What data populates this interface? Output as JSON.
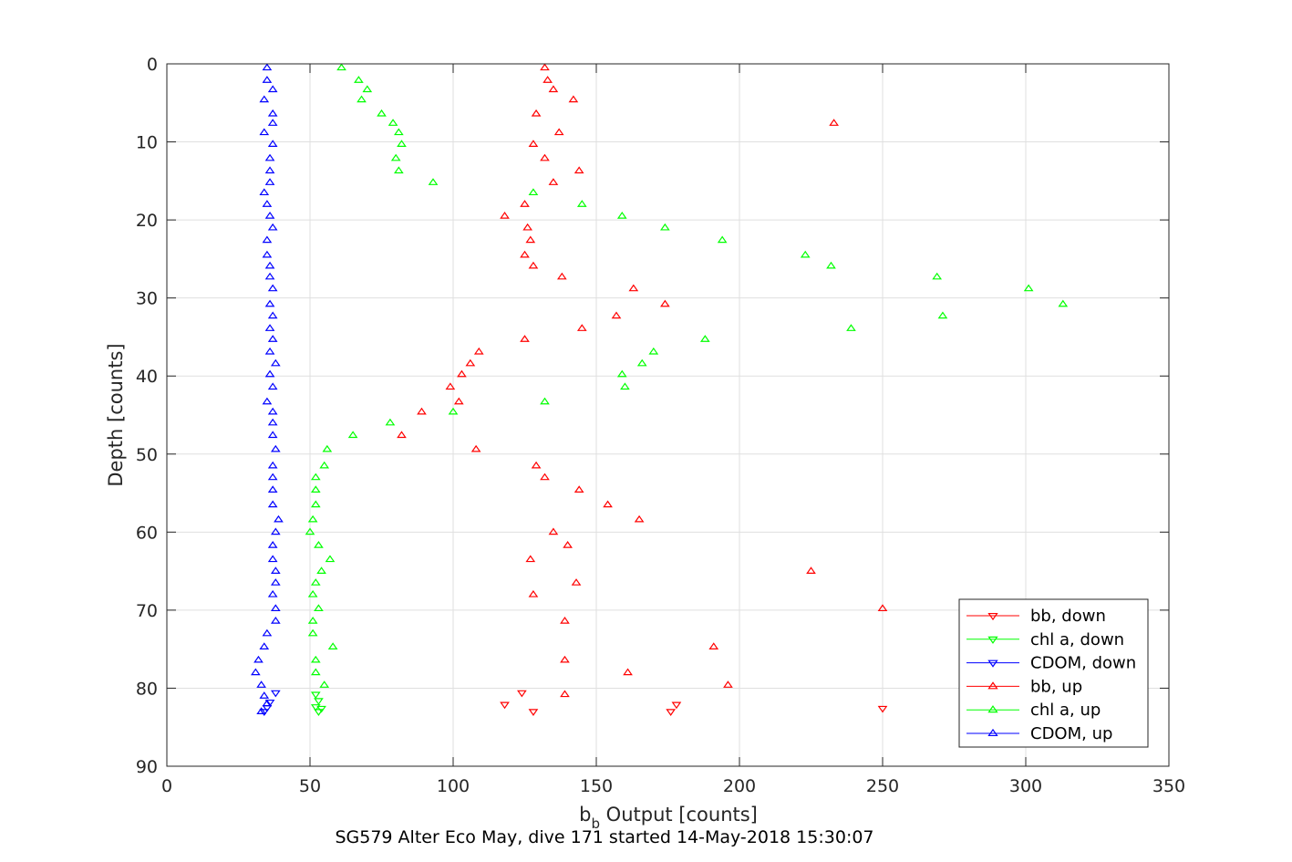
{
  "chart_data": {
    "type": "scatter",
    "xlabel": "b",
    "xlabel_sub": "b",
    "xlabel_suffix": " Output [counts]",
    "ylabel": "Depth [counts]",
    "caption": "SG579 Alter Eco May, dive 171 started 14-May-2018 15:30:07",
    "xlim": [
      0,
      350
    ],
    "ylim": [
      0,
      90
    ],
    "y_reversed": true,
    "grid": true,
    "legend_position": "bottom-right",
    "xticks": [
      "0",
      "50",
      "100",
      "150",
      "200",
      "250",
      "300",
      "350"
    ],
    "yticks": [
      "0",
      "10",
      "20",
      "30",
      "40",
      "50",
      "60",
      "70",
      "80",
      "90"
    ],
    "series": [
      {
        "name": "bb, down",
        "color": "#ff0000",
        "marker": "triangle-down",
        "points": [
          [
            124,
            80.6
          ],
          [
            118,
            82.1
          ],
          [
            128,
            83.0
          ],
          [
            176,
            83.0
          ],
          [
            178,
            82.1
          ],
          [
            250,
            82.6
          ]
        ]
      },
      {
        "name": "chl a, down",
        "color": "#00ff00",
        "marker": "triangle-down",
        "points": [
          [
            52,
            80.8
          ],
          [
            53,
            81.6
          ],
          [
            52,
            82.4
          ],
          [
            54,
            82.6
          ],
          [
            53,
            83.0
          ]
        ]
      },
      {
        "name": "CDOM, down",
        "color": "#0000ff",
        "marker": "triangle-down",
        "points": [
          [
            38,
            80.6
          ],
          [
            36,
            81.8
          ],
          [
            35,
            82.5
          ],
          [
            34,
            83.0
          ]
        ]
      },
      {
        "name": "bb, up",
        "color": "#ff0000",
        "marker": "triangle-up",
        "points": [
          [
            132,
            0.5
          ],
          [
            133,
            2.1
          ],
          [
            135,
            3.3
          ],
          [
            142,
            4.6
          ],
          [
            129,
            6.4
          ],
          [
            233,
            7.6
          ],
          [
            137,
            8.8
          ],
          [
            128,
            10.3
          ],
          [
            132,
            12.1
          ],
          [
            144,
            13.7
          ],
          [
            135,
            15.2
          ],
          [
            125,
            18.0
          ],
          [
            118,
            19.5
          ],
          [
            126,
            21.0
          ],
          [
            127,
            22.6
          ],
          [
            125,
            24.5
          ],
          [
            128,
            25.9
          ],
          [
            138,
            27.3
          ],
          [
            163,
            28.8
          ],
          [
            174,
            30.8
          ],
          [
            157,
            32.3
          ],
          [
            145,
            33.9
          ],
          [
            125,
            35.3
          ],
          [
            109,
            36.9
          ],
          [
            106,
            38.4
          ],
          [
            103,
            39.8
          ],
          [
            99,
            41.4
          ],
          [
            102,
            43.3
          ],
          [
            89,
            44.6
          ],
          [
            82,
            47.6
          ],
          [
            108,
            49.4
          ],
          [
            129,
            51.5
          ],
          [
            132,
            53.0
          ],
          [
            144,
            54.6
          ],
          [
            154,
            56.5
          ],
          [
            165,
            58.4
          ],
          [
            135,
            60.0
          ],
          [
            140,
            61.7
          ],
          [
            127,
            63.5
          ],
          [
            225,
            65.0
          ],
          [
            143,
            66.5
          ],
          [
            128,
            68.0
          ],
          [
            250,
            69.8
          ],
          [
            139,
            71.4
          ],
          [
            191,
            74.7
          ],
          [
            139,
            76.4
          ],
          [
            161,
            78.0
          ],
          [
            196,
            79.6
          ],
          [
            139,
            80.8
          ]
        ]
      },
      {
        "name": "chl a, up",
        "color": "#00ff00",
        "marker": "triangle-up",
        "points": [
          [
            61,
            0.5
          ],
          [
            67,
            2.1
          ],
          [
            70,
            3.3
          ],
          [
            68,
            4.6
          ],
          [
            75,
            6.4
          ],
          [
            79,
            7.6
          ],
          [
            81,
            8.8
          ],
          [
            82,
            10.3
          ],
          [
            80,
            12.1
          ],
          [
            81,
            13.7
          ],
          [
            93,
            15.2
          ],
          [
            128,
            16.5
          ],
          [
            145,
            18.0
          ],
          [
            159,
            19.5
          ],
          [
            174,
            21.0
          ],
          [
            194,
            22.6
          ],
          [
            223,
            24.5
          ],
          [
            232,
            25.9
          ],
          [
            269,
            27.3
          ],
          [
            301,
            28.8
          ],
          [
            313,
            30.8
          ],
          [
            271,
            32.3
          ],
          [
            239,
            33.9
          ],
          [
            188,
            35.3
          ],
          [
            170,
            36.9
          ],
          [
            166,
            38.4
          ],
          [
            159,
            39.8
          ],
          [
            160,
            41.4
          ],
          [
            132,
            43.3
          ],
          [
            100,
            44.6
          ],
          [
            78,
            46.0
          ],
          [
            65,
            47.6
          ],
          [
            56,
            49.4
          ],
          [
            55,
            51.5
          ],
          [
            52,
            53.0
          ],
          [
            52,
            54.6
          ],
          [
            52,
            56.5
          ],
          [
            51,
            58.4
          ],
          [
            50,
            60.0
          ],
          [
            53,
            61.7
          ],
          [
            57,
            63.5
          ],
          [
            54,
            65.0
          ],
          [
            52,
            66.5
          ],
          [
            51,
            68.0
          ],
          [
            53,
            69.8
          ],
          [
            51,
            71.4
          ],
          [
            51,
            73.0
          ],
          [
            58,
            74.7
          ],
          [
            52,
            76.4
          ],
          [
            52,
            78.0
          ],
          [
            55,
            79.6
          ]
        ]
      },
      {
        "name": "CDOM, up",
        "color": "#0000ff",
        "marker": "triangle-up",
        "points": [
          [
            35,
            0.5
          ],
          [
            35,
            2.1
          ],
          [
            37,
            3.3
          ],
          [
            34,
            4.6
          ],
          [
            37,
            6.4
          ],
          [
            37,
            7.6
          ],
          [
            34,
            8.8
          ],
          [
            37,
            10.3
          ],
          [
            36,
            12.1
          ],
          [
            36,
            13.7
          ],
          [
            36,
            15.2
          ],
          [
            34,
            16.5
          ],
          [
            35,
            18.0
          ],
          [
            36,
            19.5
          ],
          [
            37,
            21.0
          ],
          [
            35,
            22.6
          ],
          [
            35,
            24.5
          ],
          [
            36,
            25.9
          ],
          [
            36,
            27.3
          ],
          [
            37,
            28.8
          ],
          [
            36,
            30.8
          ],
          [
            37,
            32.3
          ],
          [
            36,
            33.9
          ],
          [
            37,
            35.3
          ],
          [
            36,
            36.9
          ],
          [
            38,
            38.4
          ],
          [
            36,
            39.8
          ],
          [
            37,
            41.4
          ],
          [
            35,
            43.3
          ],
          [
            37,
            44.6
          ],
          [
            37,
            46.0
          ],
          [
            37,
            47.6
          ],
          [
            38,
            49.4
          ],
          [
            37,
            51.5
          ],
          [
            37,
            53.0
          ],
          [
            37,
            54.6
          ],
          [
            37,
            56.5
          ],
          [
            39,
            58.4
          ],
          [
            38,
            60.0
          ],
          [
            37,
            61.7
          ],
          [
            37,
            63.5
          ],
          [
            38,
            65.0
          ],
          [
            38,
            66.5
          ],
          [
            37,
            68.0
          ],
          [
            38,
            69.8
          ],
          [
            38,
            71.4
          ],
          [
            35,
            73.0
          ],
          [
            34,
            74.7
          ],
          [
            32,
            76.4
          ],
          [
            31,
            78.0
          ],
          [
            33,
            79.6
          ],
          [
            34,
            81.0
          ],
          [
            35,
            82.0
          ],
          [
            33,
            83.0
          ]
        ]
      }
    ]
  }
}
